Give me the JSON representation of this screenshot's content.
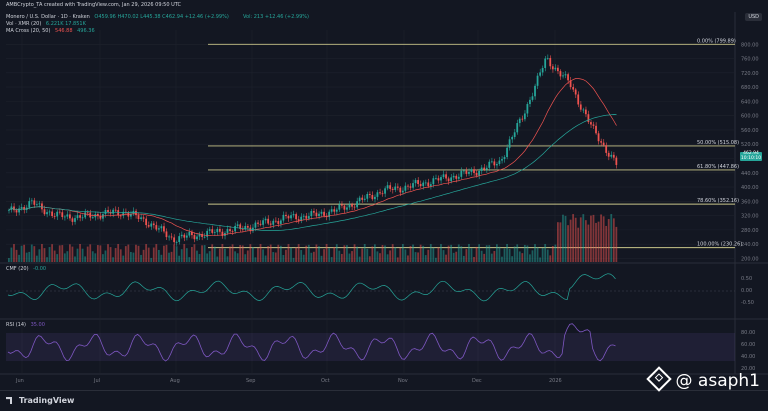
{
  "top_note": "AMBCrypto_TA created with TradingView.com, Jan 29, 2026 09:50 UTC",
  "legend": {
    "symbol": "Monero / U.S. Dollar · 1D · Kraken",
    "ohlc": "O459.96 H470.02 L445.38 C462.94 +12.46 (+2.99%)",
    "vol_title": "Vol · XMR (20)",
    "vol_value": "6.221K 17.851K",
    "ma_title": "MA Cross (20, 50)",
    "ma_value1": "546.88",
    "ma_value2": "496.36",
    "vol_right": "Vol: 213 +12.46 (+2.99%)"
  },
  "currency": "USD",
  "cmf_label": "CMF (20)",
  "cmf_value": "-0.00",
  "rsi_label": "RSI (14)",
  "rsi_value": "35.00",
  "price_tag_1": "462.94",
  "price_tag_2": "10:10:10",
  "branding": "TradingView",
  "watermark": "@ asaph1",
  "chart_data": {
    "type": "line",
    "title": "Monero / U.S. Dollar · 1D · Kraken",
    "y_axis_ticks": [
      800,
      760,
      720,
      680,
      640,
      600,
      560,
      520,
      480,
      440,
      400,
      360,
      320,
      280,
      240,
      200
    ],
    "x_ticks": [
      "Jun",
      "Jul",
      "Aug",
      "Sep",
      "Oct",
      "Nov",
      "Dec",
      "2026"
    ],
    "fib_levels": [
      {
        "label": "0.00% (799.89)",
        "value": 799.89
      },
      {
        "label": "50.00% (515.08)",
        "value": 515.08
      },
      {
        "label": "61.80% (447.86)",
        "value": 447.86
      },
      {
        "label": "78.60% (352.16)",
        "value": 352.16
      },
      {
        "label": "100.00% (230.26)",
        "value": 230.26
      }
    ],
    "price_close": [
      {
        "x": "Jun",
        "y": 330
      },
      {
        "x": "Jun",
        "y": 355
      },
      {
        "x": "Jun",
        "y": 320
      },
      {
        "x": "Jul",
        "y": 315
      },
      {
        "x": "Jul",
        "y": 325
      },
      {
        "x": "Jul",
        "y": 330
      },
      {
        "x": "Aug",
        "y": 300
      },
      {
        "x": "Aug",
        "y": 255
      },
      {
        "x": "Aug",
        "y": 265
      },
      {
        "x": "Sep",
        "y": 275
      },
      {
        "x": "Sep",
        "y": 285
      },
      {
        "x": "Sep",
        "y": 300
      },
      {
        "x": "Oct",
        "y": 315
      },
      {
        "x": "Oct",
        "y": 320
      },
      {
        "x": "Oct",
        "y": 335
      },
      {
        "x": "Nov",
        "y": 360
      },
      {
        "x": "Nov",
        "y": 390
      },
      {
        "x": "Nov",
        "y": 400
      },
      {
        "x": "Dec",
        "y": 415
      },
      {
        "x": "Dec",
        "y": 430
      },
      {
        "x": "Dec",
        "y": 445
      },
      {
        "x": "2026",
        "y": 470
      },
      {
        "x": "2026",
        "y": 600
      },
      {
        "x": "2026",
        "y": 760
      },
      {
        "x": "2026",
        "y": 690
      },
      {
        "x": "2026",
        "y": 560
      },
      {
        "x": "2026",
        "y": 462.94
      }
    ],
    "rsi_ticks": [
      80,
      60,
      40,
      20
    ],
    "cmf_ticks": [
      0.5,
      0,
      -0.5
    ],
    "grid": true
  }
}
